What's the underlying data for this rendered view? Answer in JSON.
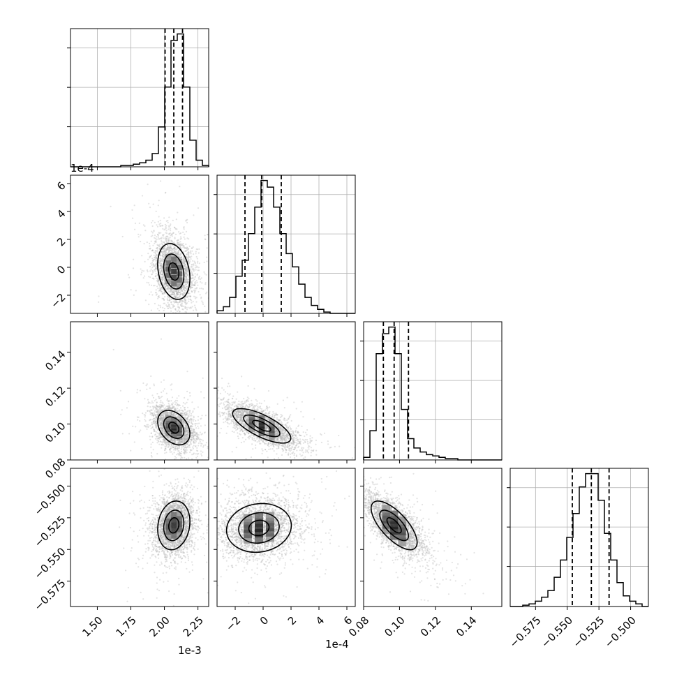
{
  "chart_data": {
    "type": "corner",
    "parameters": [
      {
        "ticks": [
          1.5,
          1.75,
          2.0,
          2.25
        ],
        "tick_labels": [
          "1.50",
          "1.75",
          "2.00",
          "2.25"
        ],
        "range": [
          1.3,
          2.33
        ],
        "offset_label": "1e-3",
        "quantiles": [
          2.005,
          2.07,
          2.135
        ]
      },
      {
        "ticks": [
          -2,
          0,
          2,
          4,
          6
        ],
        "tick_labels": [
          "−2",
          "0",
          "2",
          "4",
          "6"
        ],
        "range": [
          -3.3,
          6.6
        ],
        "offset_label": "1e-4",
        "quantiles": [
          -1.3,
          -0.1,
          1.3
        ]
      },
      {
        "ticks": [
          0.08,
          0.1,
          0.12,
          0.14
        ],
        "tick_labels": [
          "0.08",
          "0.10",
          "0.12",
          "0.14"
        ],
        "range": [
          0.08,
          0.157
        ],
        "offset_label": "",
        "quantiles": [
          0.091,
          0.097,
          0.105
        ]
      },
      {
        "ticks": [
          -0.575,
          -0.55,
          -0.525,
          -0.5
        ],
        "tick_labels": [
          "−0.575",
          "−0.550",
          "−0.525",
          "−0.500"
        ],
        "range": [
          -0.595,
          -0.486
        ],
        "offset_label": "",
        "quantiles": [
          -0.546,
          -0.531,
          -0.517
        ]
      }
    ],
    "histograms": [
      [
        0,
        0,
        0,
        0,
        0,
        0,
        0,
        0,
        1,
        1,
        2,
        3,
        5,
        10,
        30,
        60,
        95,
        100,
        60,
        20,
        5,
        1
      ],
      [
        2,
        5,
        12,
        28,
        40,
        60,
        80,
        100,
        95,
        80,
        60,
        45,
        35,
        22,
        12,
        6,
        3,
        1,
        0,
        0,
        0,
        0
      ],
      [
        2,
        22,
        80,
        95,
        100,
        80,
        38,
        16,
        9,
        6,
        4,
        3,
        2,
        1,
        1,
        0,
        0,
        0,
        0,
        0,
        0,
        0
      ],
      [
        0,
        0,
        1,
        2,
        4,
        7,
        12,
        22,
        35,
        52,
        70,
        90,
        100,
        100,
        80,
        55,
        35,
        18,
        8,
        4,
        2,
        0
      ]
    ],
    "hist_ylim": [
      0,
      104
    ],
    "pairs": [
      {
        "row": 1,
        "col": 0,
        "center": [
          2.07,
          -0.3
        ],
        "sd": [
          0.075,
          1.25
        ],
        "rho": -0.25
      },
      {
        "row": 2,
        "col": 0,
        "center": [
          2.07,
          0.098
        ],
        "sd": [
          0.075,
          0.006
        ],
        "rho": -0.35
      },
      {
        "row": 2,
        "col": 1,
        "center": [
          -0.1,
          0.099
        ],
        "sd": [
          1.3,
          0.006
        ],
        "rho": -0.72
      },
      {
        "row": 3,
        "col": 0,
        "center": [
          2.07,
          -0.531
        ],
        "sd": [
          0.075,
          0.012
        ],
        "rho": 0.15
      },
      {
        "row": 3,
        "col": 1,
        "center": [
          -0.3,
          -0.533
        ],
        "sd": [
          1.45,
          0.012
        ],
        "rho": 0.1
      },
      {
        "row": 3,
        "col": 2,
        "center": [
          0.097,
          -0.531
        ],
        "sd": [
          0.008,
          0.012
        ],
        "rho": -0.7
      }
    ],
    "grid": true,
    "colors": {
      "line": "#000000",
      "points": "#b0b0b0",
      "grid": "#b0b0b0",
      "density": "#000000"
    }
  }
}
